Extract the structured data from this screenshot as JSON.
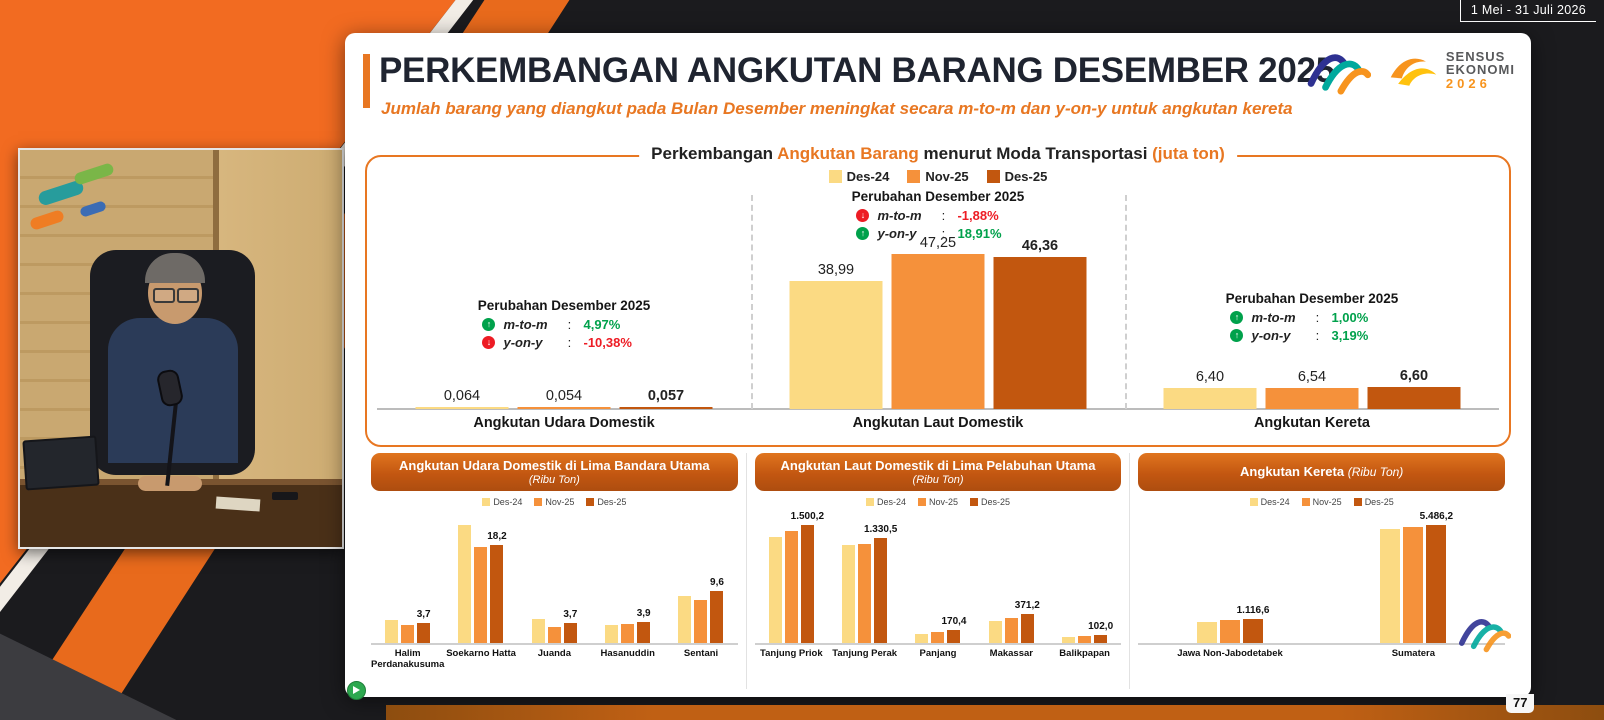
{
  "meta": {
    "date_range": "1 Mei - 31 Juli 2026",
    "page_number": "77"
  },
  "colors": {
    "accent": "#E87722",
    "des24": "#FBDA83",
    "nov25": "#F5913B",
    "des25": "#C2570F",
    "green": "#00A14B",
    "red": "#ED1C24"
  },
  "slide": {
    "title": "PERKEMBANGAN ANGKUTAN BARANG DESEMBER 2025",
    "subtitle": "Jumlah barang yang diangkut pada Bulan Desember meningkat secara m-to-m dan y-on-y untuk angkutan kereta"
  },
  "logos": {
    "sensus_line1": "SENSUS",
    "sensus_line2": "EKONOMI",
    "sensus_line3": "2026"
  },
  "main_chart_title": {
    "p1": "Perkembangan ",
    "p2": "Angkutan Barang",
    "p3": " menurut Moda Transportasi ",
    "p4": "(juta ton)"
  },
  "chart_data": [
    {
      "id": "moda-transportasi",
      "type": "bar",
      "title": "Perkembangan Angkutan Barang menurut Moda Transportasi (juta ton)",
      "unit": "juta ton",
      "legend_position": "top",
      "categories": [
        "Angkutan Udara Domestik",
        "Angkutan Laut Domestik",
        "Angkutan Kereta"
      ],
      "series": [
        {
          "name": "Des-24",
          "values": [
            0.064,
            38.99,
            6.4
          ]
        },
        {
          "name": "Nov-25",
          "values": [
            0.054,
            47.25,
            6.54
          ]
        },
        {
          "name": "Des-25",
          "values": [
            0.057,
            46.36,
            6.6
          ]
        }
      ],
      "value_labels": [
        [
          "0,064",
          "0,054",
          "0,057"
        ],
        [
          "38,99",
          "47,25",
          "46,36"
        ],
        [
          "6,40",
          "6,54",
          "6,60"
        ]
      ],
      "annotations": [
        {
          "title": "Perubahan Desember 2025",
          "rows": [
            {
              "metric": "m-to-m",
              "dir": "up",
              "tone": "green",
              "value": "4,97%"
            },
            {
              "metric": "y-on-y",
              "dir": "down",
              "tone": "red",
              "value": "-10,38%"
            }
          ]
        },
        {
          "title": "Perubahan Desember 2025",
          "rows": [
            {
              "metric": "m-to-m",
              "dir": "down",
              "tone": "red",
              "value": "-1,88%"
            },
            {
              "metric": "y-on-y",
              "dir": "up",
              "tone": "green",
              "value": "18,91%"
            }
          ]
        },
        {
          "title": "Perubahan Desember 2025",
          "rows": [
            {
              "metric": "m-to-m",
              "dir": "up",
              "tone": "green",
              "value": "1,00%"
            },
            {
              "metric": "y-on-y",
              "dir": "up",
              "tone": "green",
              "value": "3,19%"
            }
          ]
        }
      ]
    },
    {
      "id": "bandara",
      "type": "bar",
      "title": "Angkutan Udara Domestik di Lima Bandara Utama",
      "unit": "(Ribu Ton)",
      "categories": [
        "Halim Perdanakusuma",
        "Soekarno Hatta",
        "Juanda",
        "Hasanuddin",
        "Sentani"
      ],
      "series": [
        {
          "name": "Des-24",
          "values": [
            4.3,
            21.8,
            4.5,
            3.3,
            8.6
          ]
        },
        {
          "name": "Nov-25",
          "values": [
            3.3,
            17.7,
            3.0,
            3.6,
            7.9
          ]
        },
        {
          "name": "Des-25",
          "values": [
            3.7,
            18.2,
            3.7,
            3.9,
            9.6
          ]
        }
      ],
      "des25_labels": [
        "3,7",
        "18,2",
        "3,7",
        "3,9",
        "9,6"
      ]
    },
    {
      "id": "pelabuhan",
      "type": "bar",
      "title": "Angkutan Laut Domestik di Lima Pelabuhan Utama",
      "unit": "(Ribu Ton)",
      "categories": [
        "Tanjung Priok",
        "Tanjung Perak",
        "Panjang",
        "Makassar",
        "Balikpapan"
      ],
      "series": [
        {
          "name": "Des-24",
          "values": [
            1350,
            1240,
            115,
            280,
            80
          ]
        },
        {
          "name": "Nov-25",
          "values": [
            1430,
            1265,
            135,
            315,
            90
          ]
        },
        {
          "name": "Des-25",
          "values": [
            1500.2,
            1330.5,
            170.4,
            371.2,
            102.0
          ]
        }
      ],
      "des25_labels": [
        "1.500,2",
        "1.330,5",
        "170,4",
        "371,2",
        "102,0"
      ]
    },
    {
      "id": "kereta",
      "type": "bar",
      "title": "Angkutan Kereta",
      "unit": "(Ribu Ton)",
      "categories": [
        "Jawa Non-Jabodetabek",
        "Sumatera"
      ],
      "series": [
        {
          "name": "Des-24",
          "values": [
            980,
            5280
          ]
        },
        {
          "name": "Nov-25",
          "values": [
            1050,
            5400
          ]
        },
        {
          "name": "Des-25",
          "values": [
            1116.6,
            5486.2
          ]
        }
      ],
      "des25_labels": [
        "1.116,6",
        "5.486,2"
      ]
    }
  ]
}
